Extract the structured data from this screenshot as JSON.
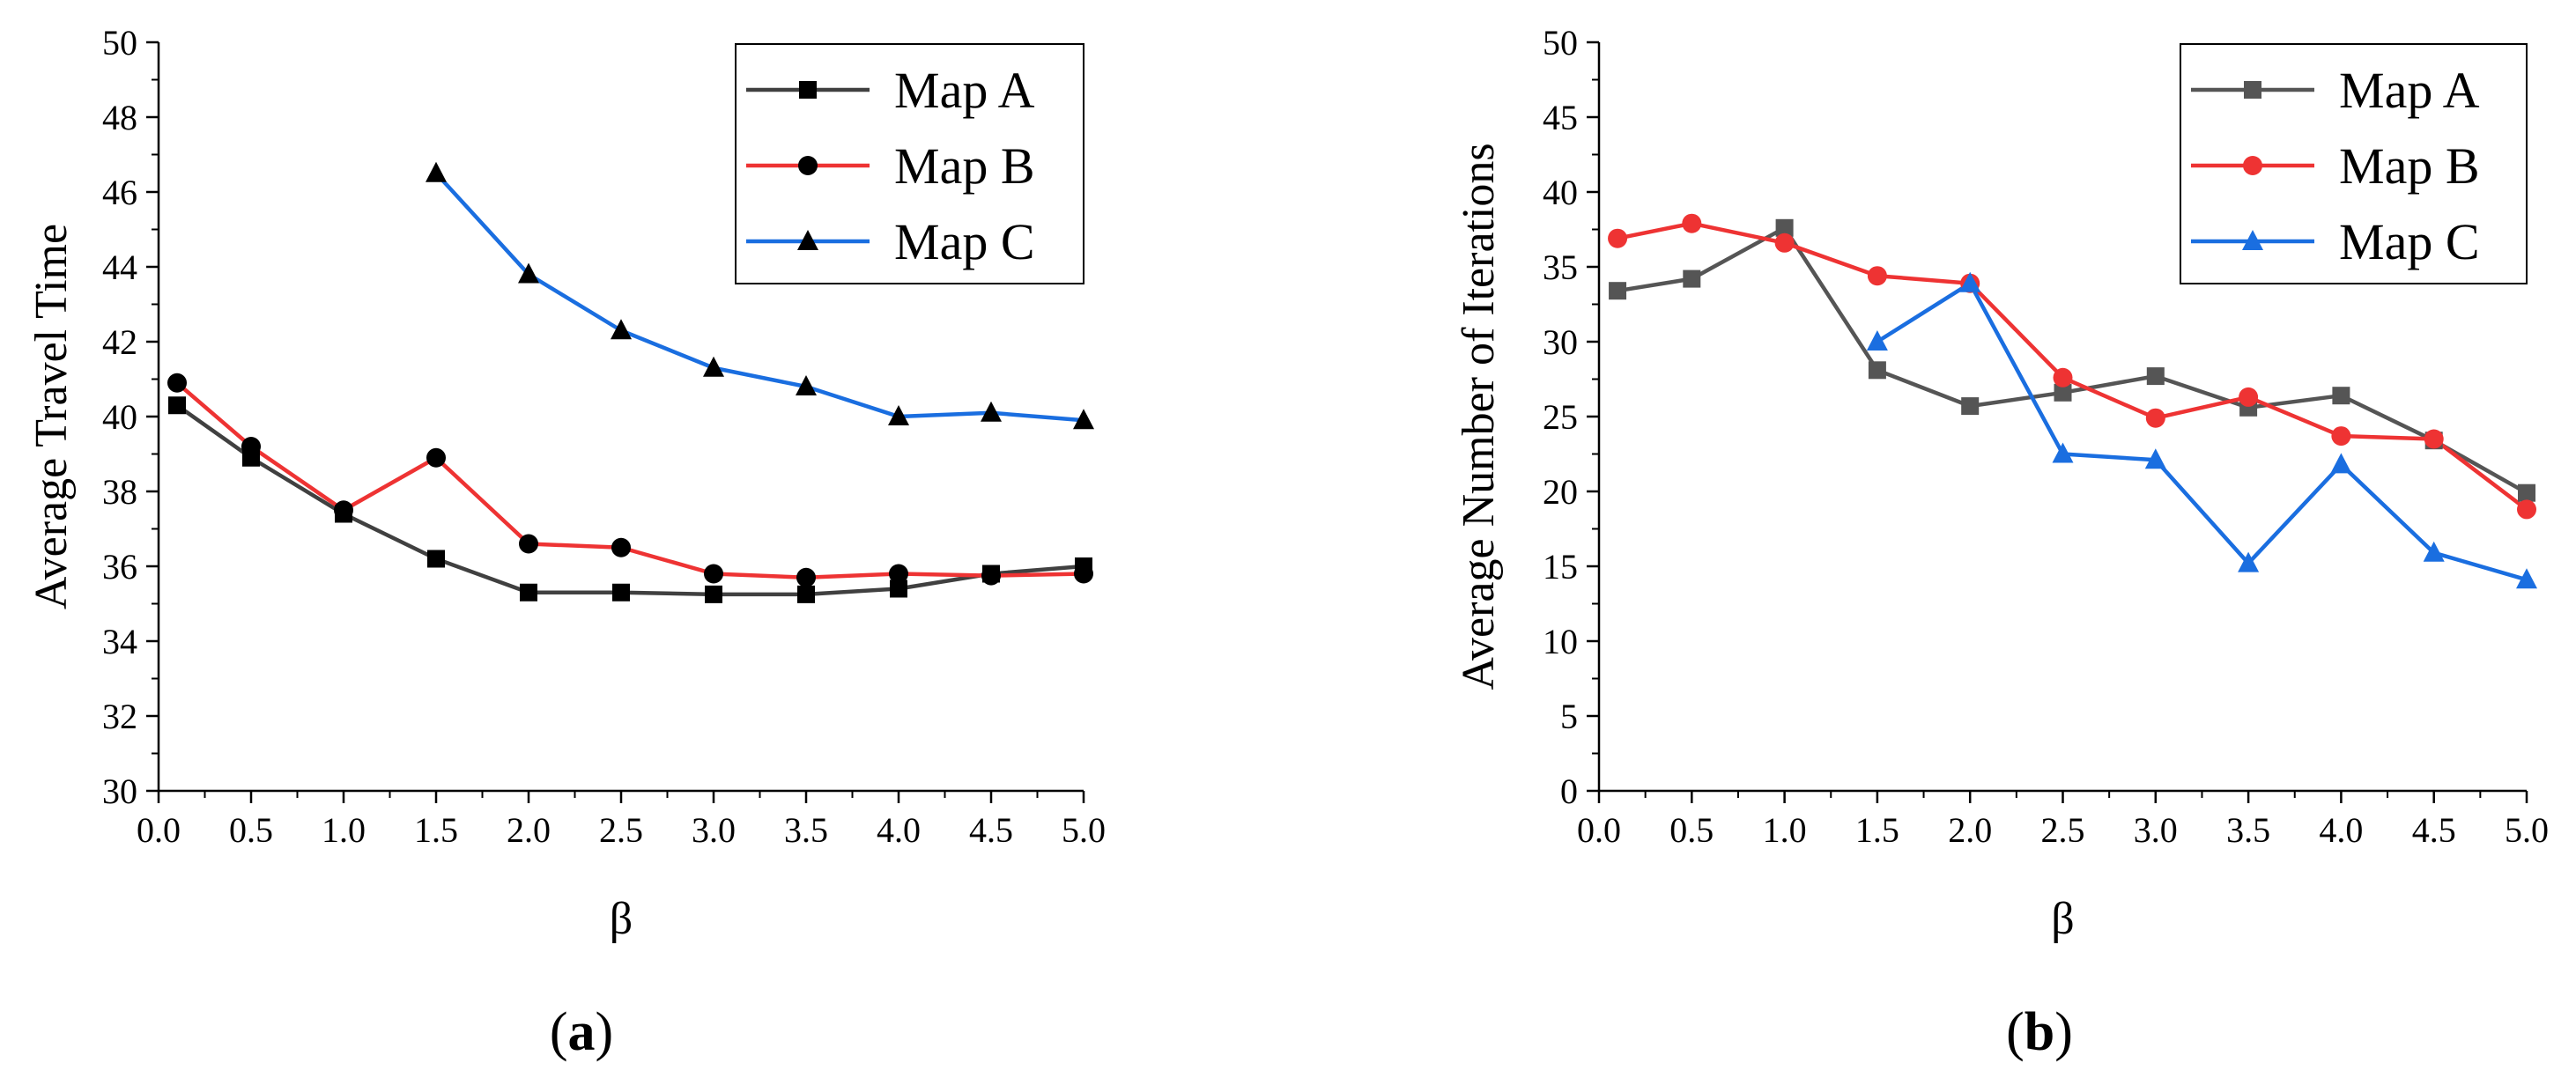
{
  "chart_data": [
    {
      "type": "line",
      "panel_label": {
        "open": "(",
        "letter": "a",
        "close": ")"
      },
      "xlabel": "β",
      "ylabel": "Average Travel Time",
      "xlim": [
        0.0,
        5.0
      ],
      "ylim": [
        30,
        50
      ],
      "x_ticks": [
        "0.0",
        "0.5",
        "1.0",
        "1.5",
        "2.0",
        "2.5",
        "3.0",
        "3.5",
        "4.0",
        "4.5",
        "5.0"
      ],
      "y_ticks": [
        "30",
        "32",
        "34",
        "36",
        "38",
        "40",
        "42",
        "44",
        "46",
        "48",
        "50"
      ],
      "legend_position": "top-right",
      "series": [
        {
          "name": "Map A",
          "color": "#404040",
          "marker": "square",
          "x": [
            0.1,
            0.5,
            1.0,
            1.5,
            2.0,
            2.5,
            3.0,
            3.5,
            4.0,
            4.5,
            5.0
          ],
          "values": [
            40.3,
            38.9,
            37.4,
            36.2,
            35.3,
            35.3,
            35.25,
            35.25,
            35.4,
            35.8,
            36.0
          ]
        },
        {
          "name": "Map B",
          "color": "#ee3333",
          "marker": "circle",
          "x": [
            0.1,
            0.5,
            1.0,
            1.5,
            2.0,
            2.5,
            3.0,
            3.5,
            4.0,
            4.5,
            5.0
          ],
          "values": [
            40.9,
            39.2,
            37.5,
            38.9,
            36.6,
            36.5,
            35.8,
            35.7,
            35.8,
            35.75,
            35.8
          ]
        },
        {
          "name": "Map C",
          "color": "#1a6ee0",
          "marker": "triangle",
          "x": [
            1.5,
            2.0,
            2.5,
            3.0,
            3.5,
            4.0,
            4.5,
            5.0
          ],
          "values": [
            46.5,
            43.8,
            42.3,
            41.3,
            40.8,
            40.0,
            40.1,
            39.9
          ]
        }
      ]
    },
    {
      "type": "line",
      "panel_label": {
        "open": "(",
        "letter": "b",
        "close": ")"
      },
      "xlabel": "β",
      "ylabel": "Average Number of Iterations",
      "xlim": [
        0.0,
        5.0
      ],
      "ylim": [
        0,
        50
      ],
      "x_ticks": [
        "0.0",
        "0.5",
        "1.0",
        "1.5",
        "2.0",
        "2.5",
        "3.0",
        "3.5",
        "4.0",
        "4.5",
        "5.0"
      ],
      "y_ticks": [
        "0",
        "5",
        "10",
        "15",
        "20",
        "25",
        "30",
        "35",
        "40",
        "45",
        "50"
      ],
      "legend_position": "top-right",
      "series": [
        {
          "name": "Map A",
          "color": "#555555",
          "marker": "square",
          "x": [
            0.1,
            0.5,
            1.0,
            1.5,
            2.0,
            2.5,
            3.0,
            3.5,
            4.0,
            4.5,
            5.0
          ],
          "values": [
            33.4,
            34.2,
            37.6,
            28.1,
            25.7,
            26.6,
            27.7,
            25.6,
            26.4,
            23.4,
            19.9
          ]
        },
        {
          "name": "Map B",
          "color": "#ee3333",
          "marker": "circle",
          "x": [
            0.1,
            0.5,
            1.0,
            1.5,
            2.0,
            2.5,
            3.0,
            3.5,
            4.0,
            4.5,
            5.0
          ],
          "values": [
            36.9,
            37.9,
            36.6,
            34.4,
            33.9,
            27.6,
            24.9,
            26.3,
            23.7,
            23.5,
            18.8
          ]
        },
        {
          "name": "Map C",
          "color": "#1a6ee0",
          "marker": "triangle",
          "x": [
            1.5,
            2.0,
            2.5,
            3.0,
            3.5,
            4.0,
            4.5,
            5.0
          ],
          "values": [
            30.0,
            33.9,
            22.5,
            22.1,
            15.2,
            21.8,
            15.9,
            14.1
          ]
        }
      ]
    }
  ]
}
